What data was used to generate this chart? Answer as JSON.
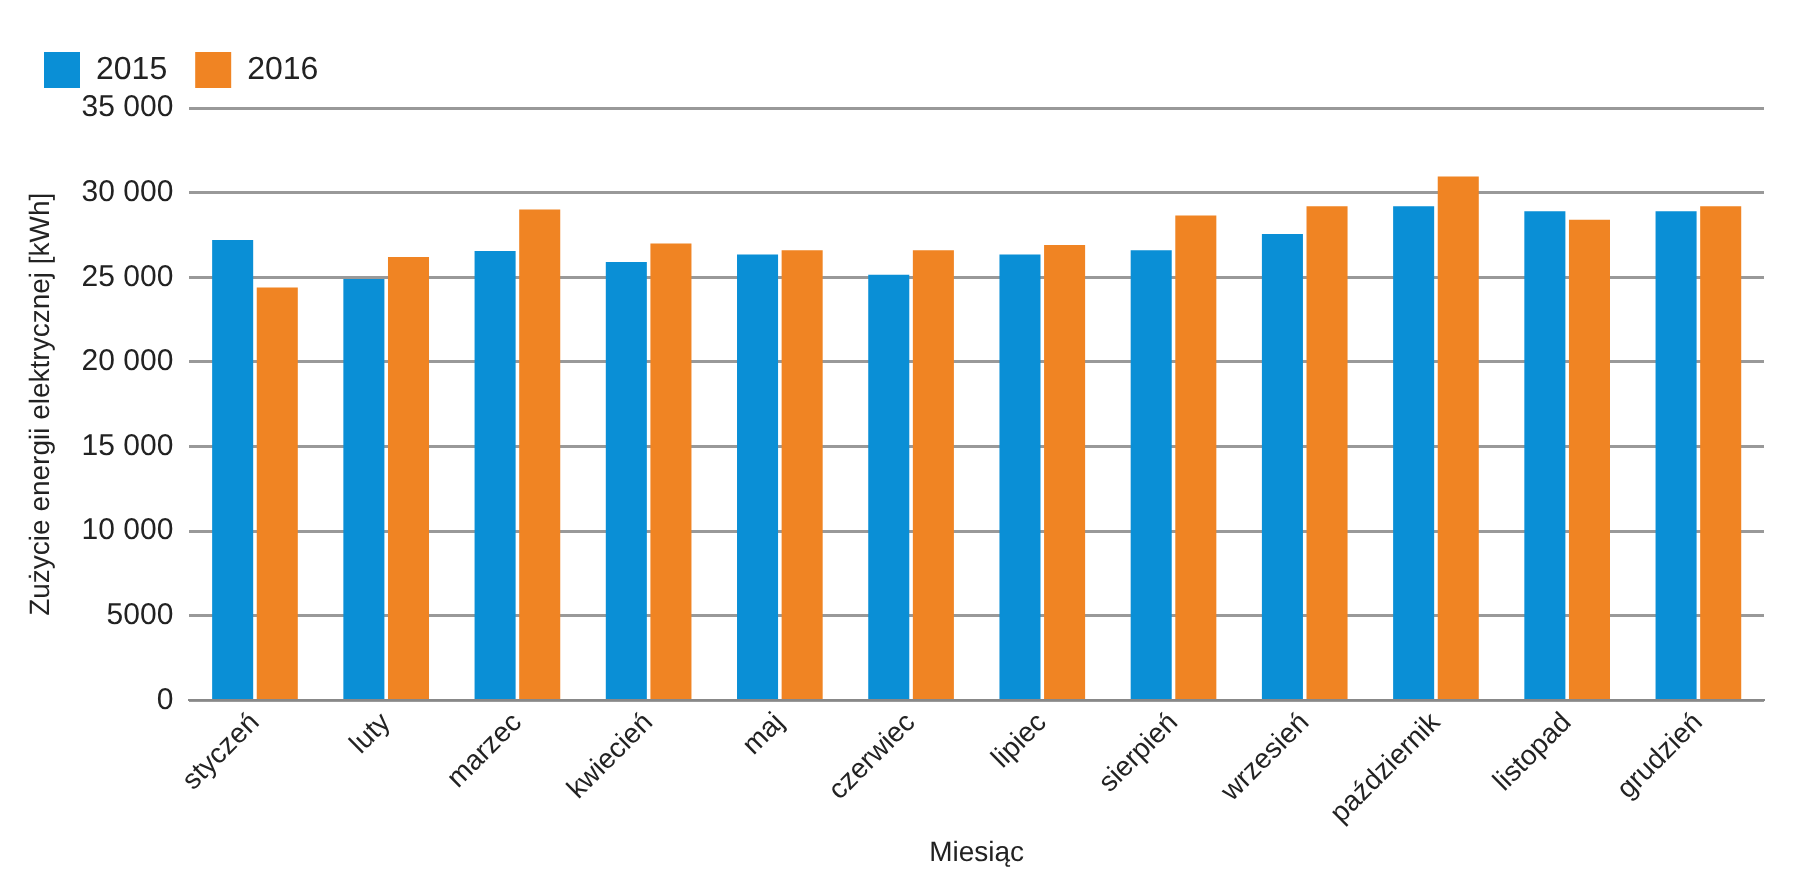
{
  "chart_data": {
    "type": "bar",
    "xlabel": "Miesiąc",
    "ylabel": "Zużycie energii elektrycznej [kWh]",
    "categories": [
      "styczeń",
      "luty",
      "marzec",
      "kwiecień",
      "maj",
      "czerwiec",
      "lipiec",
      "sierpień",
      "wrzesień",
      "październik",
      "listopad",
      "grudzień"
    ],
    "series": [
      {
        "name": "2015",
        "color": "#0a8fd6",
        "values": [
          27200,
          24900,
          26550,
          25900,
          26350,
          25150,
          26350,
          26600,
          27550,
          29200,
          28900,
          28900
        ]
      },
      {
        "name": "2016",
        "color": "#f08423",
        "values": [
          24400,
          26200,
          29000,
          27000,
          26600,
          26600,
          26900,
          28650,
          29200,
          30950,
          28400,
          29200
        ]
      }
    ],
    "ylim": [
      0,
      35000
    ],
    "yticks": [
      0,
      {
        "value": 5000,
        "label": "5000"
      },
      {
        "value": 10000,
        "label": "10 000"
      },
      {
        "value": 15000,
        "label": "15 000"
      },
      {
        "value": 20000,
        "label": "20 000"
      },
      {
        "value": 25000,
        "label": "25 000"
      },
      {
        "value": 30000,
        "label": "30 000"
      },
      {
        "value": 35000,
        "label": "35 000"
      }
    ],
    "grid": "y",
    "legend": "top left"
  }
}
